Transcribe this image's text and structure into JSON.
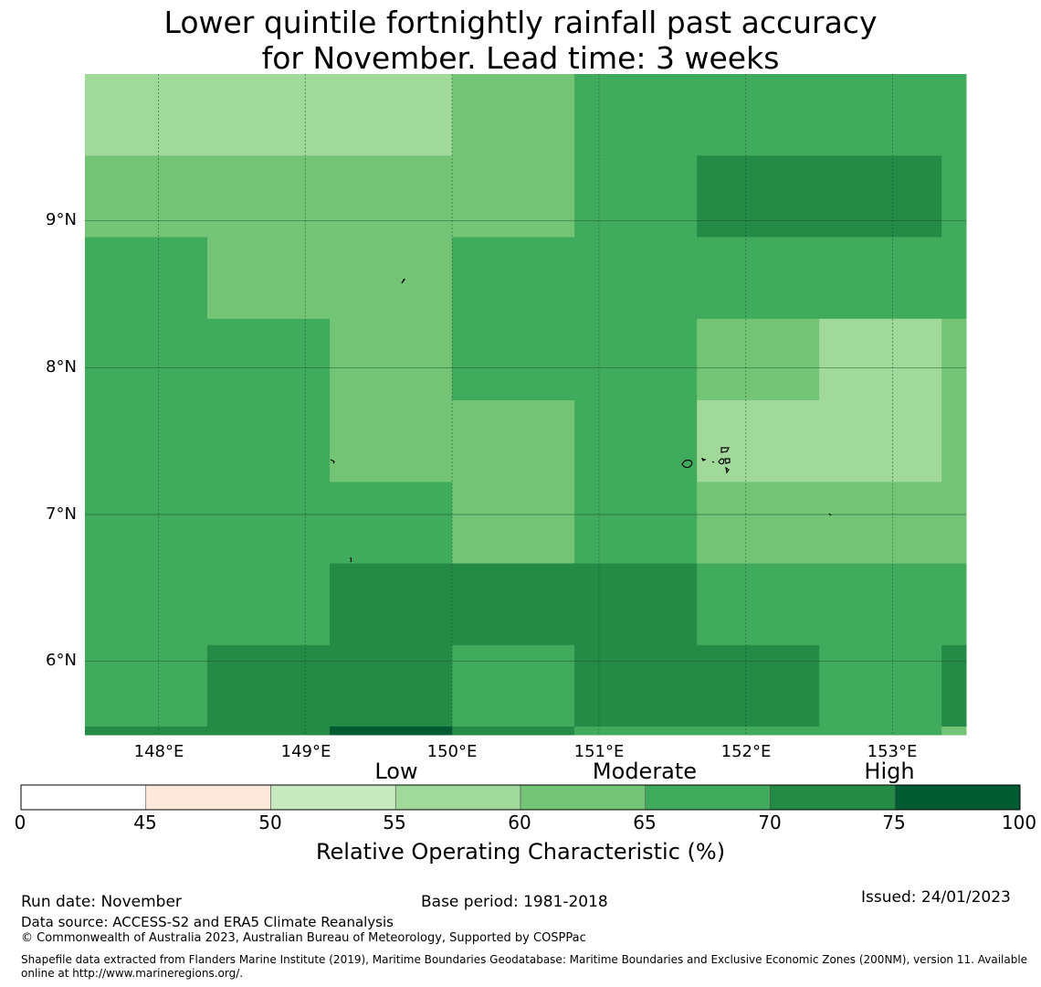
{
  "title": {
    "line1": "Lower quintile fortnightly rainfall past accuracy",
    "line2": "for November. Lead time: 3 weeks"
  },
  "map": {
    "lon_range": [
      147.5,
      153.5
    ],
    "lat_range": [
      5.5,
      10.0
    ],
    "grid_lons": [
      148,
      149,
      150,
      151,
      152,
      153
    ],
    "grid_lats": [
      6,
      7,
      8,
      9
    ],
    "lat_labels": [
      "9°N",
      "8°N",
      "7°N",
      "6°N"
    ],
    "lon_labels": [
      "148°E",
      "149°E",
      "150°E",
      "151°E",
      "152°E",
      "153°E"
    ],
    "cell_edges_lon": [
      147.5,
      148.333,
      149.167,
      150.0,
      150.833,
      151.667,
      152.5,
      153.333,
      153.5
    ],
    "cell_edges_lat": [
      10.0,
      9.444,
      8.889,
      8.333,
      7.778,
      7.222,
      6.667,
      6.111,
      5.556,
      5.5
    ],
    "values": [
      [
        57,
        57,
        57,
        62,
        67,
        67,
        67,
        67
      ],
      [
        62,
        62,
        62,
        62,
        67,
        72,
        72,
        67
      ],
      [
        67,
        62,
        62,
        67,
        67,
        67,
        67,
        67
      ],
      [
        67,
        67,
        62,
        67,
        67,
        62,
        57,
        62
      ],
      [
        67,
        67,
        62,
        62,
        67,
        57,
        57,
        62
      ],
      [
        67,
        67,
        67,
        62,
        67,
        62,
        62,
        62
      ],
      [
        67,
        67,
        72,
        72,
        72,
        67,
        67,
        67
      ],
      [
        67,
        72,
        72,
        67,
        72,
        72,
        67,
        72
      ],
      [
        72,
        72,
        77,
        72,
        67,
        67,
        67,
        62
      ]
    ]
  },
  "colorbar": {
    "ticks": [
      "0",
      "45",
      "50",
      "55",
      "60",
      "65",
      "70",
      "75",
      "100"
    ],
    "categories": [
      "Low",
      "Moderate",
      "High"
    ],
    "label": "Relative Operating Characteristic (%)",
    "colors": [
      "#ffffff",
      "#fee8dc",
      "#c7e9c0",
      "#a1d99b",
      "#74c476",
      "#41ab5d",
      "#238b45",
      "#005a32"
    ],
    "bounds": [
      0,
      45,
      50,
      55,
      60,
      65,
      70,
      75,
      100
    ]
  },
  "footer": {
    "run_date": "Run date: November",
    "base_period": "Base period: 1981-2018",
    "issued": "Issued: 24/01/2023",
    "data_source": "Data source: ACCESS-S2 and ERA5 Climate Reanalysis",
    "copyright": "© Commonwealth of Australia 2023, Australian Bureau of Meteorology, Supported by COSPPac",
    "shapefile_1": "Shapefile data extracted from Flanders Marine Institute (2019), Maritime Boundaries Geodatabase: Maritime Boundaries and Exclusive Economic Zones (200NM), version 11. Available",
    "shapefile_2": "online at http://www.marineregions.org/."
  }
}
